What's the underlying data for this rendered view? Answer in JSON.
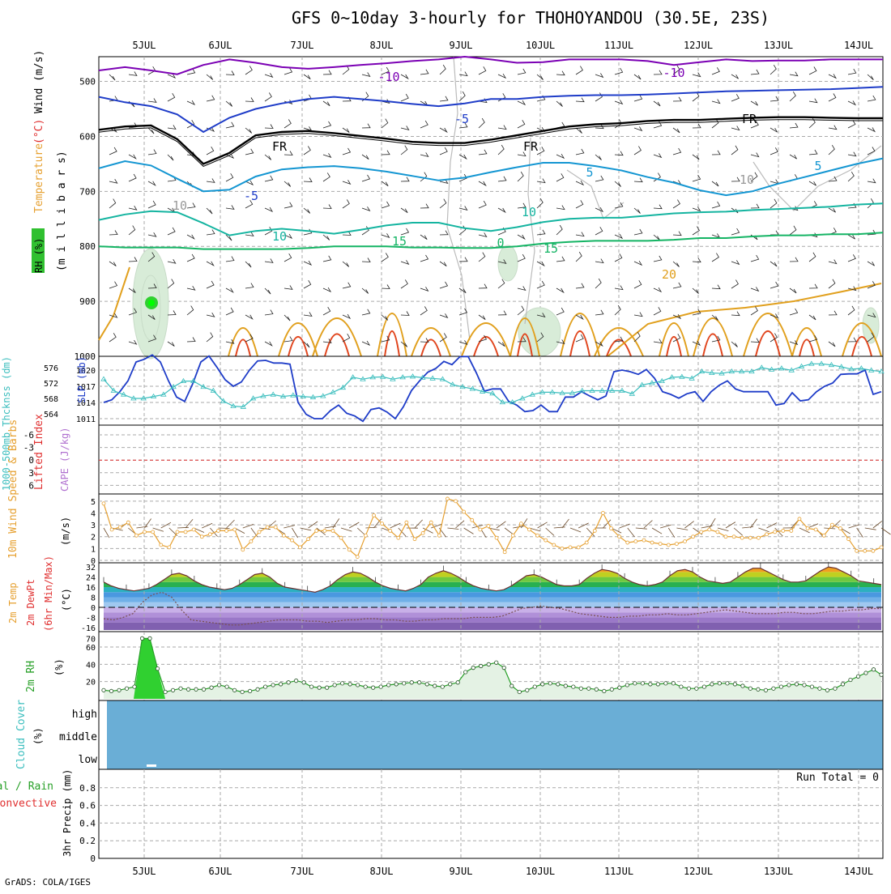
{
  "title": "GFS 0~10day 3-hourly for THOHOYANDOU (30.5E, 23S)",
  "footer": "GrADS: COLA/IGES",
  "colors": {
    "grid": "#aaaaaa",
    "temp_cold": "#7b00b4",
    "temp_blue": "#1e3cc8",
    "temp_freezing": "#000000",
    "temp_cyan": "#1496d2",
    "temp_teal": "#14b4a0",
    "temp_green": "#14b464",
    "temp_orange": "#e1a01e",
    "temp_red": "#e1461e",
    "slp": "#1e3cc8",
    "thickness": "#3cbebe",
    "wind10m": "#e6a030",
    "rh": "#28a028",
    "cloud": "#6aaed6",
    "lifted": "#e03030"
  },
  "chart_data": [
    {
      "type": "line",
      "panel": "upper-air",
      "title": "Temperature (°C) / Wind (m/s) / RH (%)",
      "ylabel": "(millibars)",
      "side_labels": {
        "temp": "Temperature",
        "temp_unit": "(°C)",
        "wind": "Wind (m/s)",
        "rh": "RH (%)",
        "units": "(m i l l i b a r s)"
      },
      "x_ticks": [
        "5JUL",
        "6JUL",
        "7JUL",
        "8JUL",
        "9JUL",
        "10JUL",
        "11JUL",
        "12JUL",
        "13JUL",
        "14JUL"
      ],
      "y_ticks": [
        500,
        600,
        700,
        800,
        900,
        1000
      ],
      "ylim": [
        455,
        1000
      ],
      "contour_labels": [
        "-10",
        "-10",
        "-5",
        "FR",
        "FR",
        "FR",
        "-5",
        "5",
        "5",
        "10",
        "10",
        "15",
        "15",
        "20",
        "10",
        "10",
        "0"
      ],
      "series": [
        {
          "name": "-10",
          "level": [
            480,
            474,
            480,
            487,
            470,
            460,
            466,
            474,
            477,
            474,
            470,
            467,
            463,
            460,
            455,
            460,
            466,
            465,
            460,
            460,
            460,
            463,
            470,
            465,
            460,
            463,
            462,
            462,
            460,
            460,
            460
          ]
        },
        {
          "name": "-5",
          "level": [
            528,
            538,
            545,
            560,
            592,
            566,
            550,
            540,
            532,
            528,
            532,
            536,
            541,
            545,
            540,
            532,
            532,
            528,
            526,
            525,
            525,
            524,
            522,
            520,
            518,
            517,
            516,
            515,
            514,
            512,
            510
          ]
        },
        {
          "name": "FR",
          "level": [
            588,
            582,
            580,
            605,
            650,
            630,
            598,
            592,
            590,
            594,
            599,
            604,
            610,
            612,
            612,
            606,
            598,
            590,
            582,
            578,
            576,
            572,
            570,
            570,
            568,
            566,
            565,
            565,
            566,
            567,
            567
          ]
        },
        {
          "name": "5",
          "level": [
            658,
            645,
            653,
            677,
            700,
            697,
            673,
            660,
            656,
            654,
            658,
            664,
            672,
            680,
            675,
            665,
            656,
            648,
            648,
            654,
            662,
            674,
            684,
            698,
            707,
            700,
            686,
            674,
            662,
            650,
            640
          ]
        },
        {
          "name": "10",
          "level": [
            752,
            742,
            736,
            738,
            758,
            780,
            772,
            768,
            772,
            777,
            770,
            762,
            757,
            757,
            767,
            772,
            765,
            756,
            750,
            748,
            748,
            744,
            740,
            738,
            737,
            734,
            732,
            730,
            728,
            724,
            722
          ]
        },
        {
          "name": "15",
          "level": [
            800,
            802,
            802,
            802,
            805,
            805,
            805,
            805,
            803,
            800,
            800,
            800,
            802,
            802,
            803,
            803,
            800,
            795,
            792,
            790,
            790,
            790,
            788,
            785,
            785,
            782,
            780,
            780,
            778,
            778,
            775
          ]
        }
      ]
    },
    {
      "type": "line",
      "panel": "slp-thickness",
      "title": "1000-500mb Thickness (dm) / SLP (mb)",
      "left_label": "1000-500mb Thcknss (dm)",
      "right_label": "SLP (mb)",
      "thickness_ticks": [
        564,
        568,
        572,
        576
      ],
      "slp_ticks": [
        1011,
        1014,
        1017,
        1020
      ],
      "series": [
        {
          "name": "SLP",
          "unit": "mb",
          "values": [
            1014,
            1014.5,
            1016,
            1018,
            1021.5,
            1022,
            1022.8,
            1021.5,
            1018,
            1015,
            1014.2,
            1017.5,
            1021.5,
            1022.6,
            1020.5,
            1018.2,
            1017,
            1017.8,
            1020,
            1021.7,
            1021.8,
            1021.3,
            1021.3,
            1021.1,
            1014,
            1011.8,
            1011,
            1011,
            1012.5,
            1013.5,
            1012,
            1011.5,
            1010.5,
            1012.7,
            1013,
            1012.2,
            1011,
            1013.2,
            1016.2,
            1018,
            1019.6,
            1020.3,
            1021.6,
            1021,
            1022.5,
            1022.5,
            1019.5,
            1016.1,
            1016.5,
            1016.5,
            1014.2,
            1013.5,
            1012.3,
            1012.5,
            1013.5,
            1012.3,
            1012.3,
            1015,
            1015,
            1016,
            1015.2,
            1014.5,
            1015.2,
            1019.7,
            1020,
            1019.7,
            1019.2,
            1020.1,
            1018.5,
            1016,
            1015.5,
            1014.8,
            1015.6,
            1016,
            1014.2,
            1016,
            1017.2,
            1018,
            1016.5,
            1016,
            1016,
            1016,
            1016,
            1013.5,
            1013.8,
            1015.8,
            1014.3,
            1014.5,
            1016,
            1017,
            1017.6,
            1019.2,
            1019.3,
            1019.3,
            1020,
            1015.5,
            1016
          ]
        },
        {
          "name": "Thickness",
          "unit": "dm",
          "values": [
            573,
            570,
            569,
            568,
            568,
            568.5,
            569,
            571,
            572.5,
            572.5,
            571,
            570,
            567.3,
            566,
            565.8,
            568,
            568.6,
            569,
            568.5,
            568.8,
            568.5,
            568.3,
            568.6,
            569.6,
            570.8,
            573.5,
            573,
            573.5,
            573.6,
            573,
            573.5,
            573.7,
            573.4,
            573.2,
            573,
            571.6,
            571,
            570.5,
            569.8,
            569.3,
            567,
            567,
            568,
            569,
            569.6,
            569.6,
            569.4,
            569.4,
            570,
            570,
            570,
            570,
            570,
            569.2,
            571.5,
            572,
            572.5,
            573.5,
            573.6,
            573.2,
            575,
            574.6,
            574.5,
            575,
            575,
            575,
            576,
            575.5,
            575.8,
            575.3,
            576.3,
            577,
            577,
            576.7,
            576.2,
            575.6,
            575.8,
            575.3,
            575
          ]
        }
      ]
    },
    {
      "type": "line",
      "panel": "cape-lifted",
      "title": "Lifted Index / CAPE (J/kg)",
      "left_label": "Lifted Index",
      "right_label": "CAPE (J/kg)",
      "y_ticks": [
        "-6",
        "-3",
        "0",
        "3",
        "6"
      ],
      "ylim": [
        6,
        -6
      ],
      "series": [
        {
          "name": "Lifted Index",
          "values": [
            0,
            0
          ]
        }
      ]
    },
    {
      "type": "line",
      "panel": "wind10m",
      "title": "10m Wind Speed & Barbs (m/s)",
      "left_label": "10m Wind Speed & Barbs",
      "unit": "(m/s)",
      "y_ticks": [
        0,
        1,
        2,
        3,
        4,
        5
      ],
      "ylim": [
        0,
        5.4
      ],
      "series": [
        {
          "name": "Speed",
          "values": [
            4.8,
            2.6,
            2.8,
            3.2,
            2.1,
            2.4,
            2.4,
            1.3,
            1.1,
            2.4,
            2.4,
            2.6,
            2.0,
            2.2,
            2.5,
            2.5,
            2.6,
            0.9,
            1.6,
            2.4,
            2.8,
            2.8,
            2.1,
            1.7,
            1.1,
            1.8,
            2.5,
            2.5,
            2.5,
            1.9,
            0.9,
            0.3,
            2.1,
            3.8,
            3.1,
            2.5,
            1.9,
            3.2,
            1.8,
            2.3,
            3.2,
            2.1,
            5.2,
            5.0,
            4.1,
            3.4,
            2.6,
            2.9,
            1.9,
            0.7,
            2.1,
            3.1,
            2.6,
            2.1,
            1.7,
            1.3,
            1.0,
            1.1,
            1.1,
            1.5,
            2.5,
            4.0,
            2.7,
            2.0,
            1.5,
            1.6,
            1.7,
            1.5,
            1.4,
            1.3,
            1.4,
            1.6,
            2.0,
            2.4,
            2.6,
            2.4,
            2.0,
            2.0,
            1.9,
            1.9,
            1.9,
            2.2,
            2.4,
            2.5,
            2.5,
            3.5,
            2.7,
            2.6,
            2.1,
            3.0,
            2.7,
            1.8,
            0.8,
            0.8,
            0.8,
            1.1
          ]
        }
      ]
    },
    {
      "type": "area",
      "panel": "temp2m",
      "title": "2m Temp / 2m DewPt (6hr Min/Max) (°C)",
      "left_label": "2m Temp",
      "left_label2": "2m DewPt",
      "left_label3": "(6hr Min/Max)",
      "unit": "(°C)",
      "y_ticks": [
        -16,
        -8,
        0,
        8,
        16,
        24,
        32
      ],
      "ylim": [
        -18,
        34
      ],
      "series": [
        {
          "name": "2m Temp",
          "values": [
            20,
            17,
            15,
            14,
            13,
            14,
            15,
            18,
            22,
            26,
            27,
            25,
            21,
            18,
            16,
            15,
            14,
            15,
            18,
            22,
            26,
            27,
            24,
            19,
            16,
            15,
            14,
            13,
            12,
            14,
            17,
            22,
            26,
            28,
            27,
            24,
            20,
            17,
            15,
            14,
            13,
            15,
            18,
            24,
            27,
            29,
            27,
            24,
            20,
            17,
            15,
            14,
            13,
            14,
            17,
            21,
            25,
            26,
            24,
            21,
            18,
            17,
            17,
            18,
            23,
            27,
            30,
            29,
            27,
            23,
            20,
            18,
            17,
            18,
            20,
            25,
            29,
            30,
            28,
            24,
            21,
            20,
            19,
            20,
            24,
            28,
            31,
            31,
            28,
            25,
            22,
            20,
            20,
            21,
            25,
            29,
            32,
            31,
            28,
            25,
            21,
            20,
            19,
            18
          ]
        },
        {
          "name": "2m DewPt",
          "values": [
            -9,
            -10,
            -8,
            -5,
            4,
            10,
            12,
            8,
            -2,
            -10,
            -11,
            -12,
            -13,
            -14,
            -14,
            -13,
            -12,
            -11,
            -10,
            -10,
            -10,
            -11,
            -11,
            -12,
            -11,
            -10,
            -10,
            -9,
            -9,
            -10,
            -10,
            -11,
            -11,
            -10,
            -10,
            -9,
            -9,
            -9,
            -8,
            -8,
            -8,
            -7,
            -4,
            -1,
            0,
            1,
            0,
            -1,
            -3,
            -5,
            -6,
            -7,
            -8,
            -8,
            -7,
            -7,
            -6,
            -6,
            -5,
            -6,
            -6,
            -5,
            -4,
            -3,
            -2,
            -3,
            -4,
            -5,
            -5,
            -5,
            -4,
            -4,
            -5,
            -5,
            -4,
            -3,
            -3,
            -2,
            -2,
            -1,
            -1
          ]
        }
      ]
    },
    {
      "type": "area",
      "panel": "rh2m",
      "title": "2m RH (%)",
      "left_label": "2m RH",
      "unit": "(%)",
      "y_ticks": [
        20,
        40,
        60,
        70
      ],
      "ylim": [
        0,
        76
      ],
      "series": [
        {
          "name": "2m RH",
          "values": [
            10,
            9,
            10,
            12,
            14,
            70,
            70,
            35,
            8,
            10,
            12,
            11,
            11,
            11,
            13,
            16,
            14,
            10,
            8,
            9,
            11,
            14,
            16,
            17,
            19,
            21,
            19,
            14,
            13,
            13,
            16,
            18,
            17,
            16,
            14,
            13,
            14,
            16,
            17,
            18,
            19,
            19,
            17,
            15,
            14,
            17,
            19,
            31,
            36,
            38,
            40,
            42,
            36,
            15,
            8,
            10,
            14,
            17,
            18,
            17,
            15,
            14,
            12,
            12,
            11,
            9,
            11,
            13,
            16,
            18,
            18,
            17,
            17,
            18,
            18,
            14,
            12,
            12,
            14,
            17,
            18,
            18,
            17,
            15,
            12,
            11,
            10,
            12,
            14,
            16,
            17,
            16,
            14,
            12,
            10,
            12,
            17,
            22,
            26,
            30,
            34,
            28
          ]
        }
      ]
    },
    {
      "type": "heatmap",
      "panel": "cloud",
      "title": "Cloud Cover (%)",
      "left_label": "Cloud Cover",
      "unit": "(%)",
      "levels": [
        "high",
        "middle",
        "low"
      ],
      "cover_percent": 0
    },
    {
      "type": "bar",
      "panel": "precip",
      "title": "3hr Precip (mm) Total / Rain Convective",
      "left_label": "Total / Rain",
      "left_label2": "Convective",
      "unit": "3hr Precip (mm)",
      "y_ticks": [
        "0",
        "0.2",
        "0.4",
        "0.6",
        "0.8"
      ],
      "ylim": [
        0,
        1
      ],
      "run_total": "Run Total = 0",
      "values": []
    }
  ]
}
